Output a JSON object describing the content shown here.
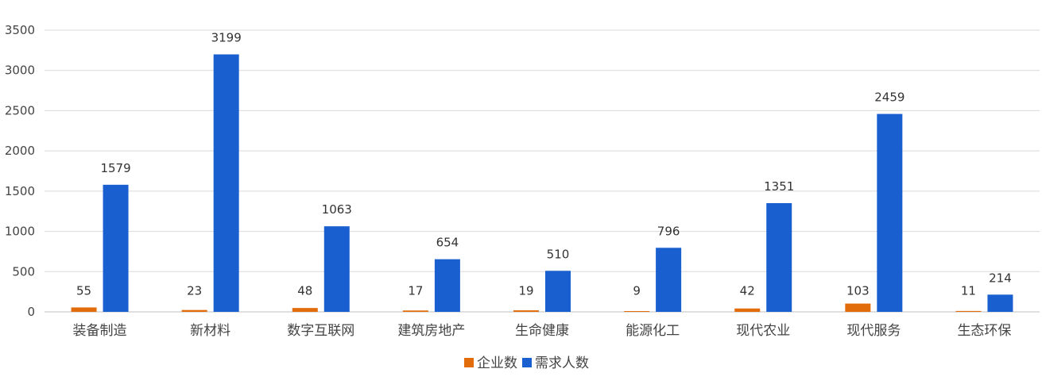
{
  "chart_data": {
    "type": "bar",
    "categories": [
      "装备制造",
      "新材料",
      "数字互联网",
      "建筑房地产",
      "生命健康",
      "能源化工",
      "现代农业",
      "现代服务",
      "生态环保"
    ],
    "series": [
      {
        "name": "企业数",
        "color": "#E36C0A",
        "values": [
          55,
          23,
          48,
          17,
          19,
          9,
          42,
          103,
          11
        ]
      },
      {
        "name": "需求人数",
        "color": "#1A5FD0",
        "values": [
          1579,
          3199,
          1063,
          654,
          510,
          796,
          1351,
          2459,
          214
        ]
      }
    ],
    "ylim": [
      0,
      3500
    ],
    "yticks": [
      0,
      500,
      1000,
      1500,
      2000,
      2500,
      3000,
      3500
    ],
    "grid": true,
    "legend": "bottom-center",
    "data_labels": true
  }
}
